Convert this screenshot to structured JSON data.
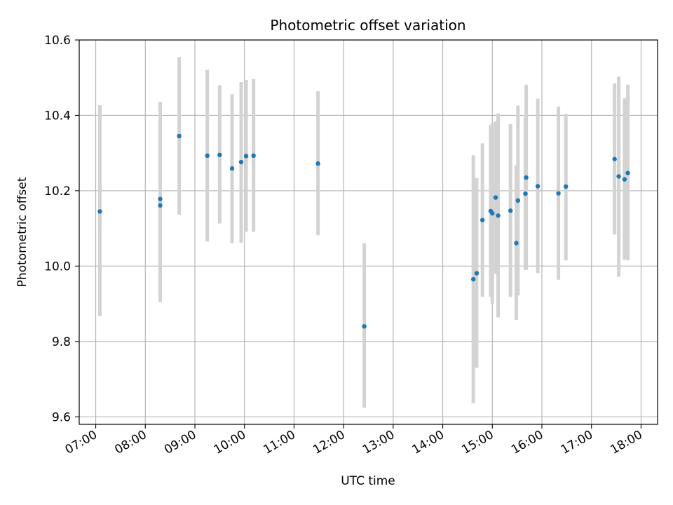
{
  "chart_data": {
    "type": "scatter",
    "title": "Photometric offset variation",
    "xlabel": "UTC time",
    "ylabel": "Photometric offset",
    "x_axis": {
      "type": "time",
      "min": "06:40",
      "max": "18:20",
      "ticks": [
        "07:00",
        "08:00",
        "09:00",
        "10:00",
        "11:00",
        "12:00",
        "13:00",
        "14:00",
        "15:00",
        "16:00",
        "17:00",
        "18:00"
      ]
    },
    "y_axis": {
      "min": 9.58,
      "max": 10.6,
      "ticks": [
        9.6,
        9.8,
        10.0,
        10.2,
        10.4,
        10.6
      ],
      "tick_labels": [
        "9.6",
        "9.8",
        "10.0",
        "10.2",
        "10.4",
        "10.6"
      ]
    },
    "grid": true,
    "colors": {
      "marker": "#1f77b4",
      "errorbar": "#d3d3d3",
      "grid": "#b0b0b0"
    },
    "points": [
      {
        "time": "07:05",
        "y": 10.145,
        "lo": 9.867,
        "hi": 10.427
      },
      {
        "time": "08:18",
        "y": 10.178,
        "lo": 9.905,
        "hi": 10.436
      },
      {
        "time": "08:18",
        "y": 10.161,
        "lo": 9.905,
        "hi": 10.436
      },
      {
        "time": "08:41",
        "y": 10.345,
        "lo": 10.136,
        "hi": 10.555
      },
      {
        "time": "09:15",
        "y": 10.293,
        "lo": 10.065,
        "hi": 10.521
      },
      {
        "time": "09:30",
        "y": 10.295,
        "lo": 10.113,
        "hi": 10.48
      },
      {
        "time": "09:45",
        "y": 10.259,
        "lo": 10.061,
        "hi": 10.456
      },
      {
        "time": "09:56",
        "y": 10.276,
        "lo": 10.062,
        "hi": 10.488
      },
      {
        "time": "10:02",
        "y": 10.292,
        "lo": 10.091,
        "hi": 10.494
      },
      {
        "time": "10:11",
        "y": 10.293,
        "lo": 10.091,
        "hi": 10.497
      },
      {
        "time": "11:29",
        "y": 10.272,
        "lo": 10.082,
        "hi": 10.464
      },
      {
        "time": "12:25",
        "y": 9.84,
        "lo": 9.624,
        "hi": 10.06
      },
      {
        "time": "14:37",
        "y": 9.965,
        "lo": 9.636,
        "hi": 10.294
      },
      {
        "time": "14:41",
        "y": 9.981,
        "lo": 9.73,
        "hi": 10.233
      },
      {
        "time": "14:48",
        "y": 10.122,
        "lo": 9.918,
        "hi": 10.326
      },
      {
        "time": "14:58",
        "y": 10.146,
        "lo": 9.918,
        "hi": 10.375
      },
      {
        "time": "15:00",
        "y": 10.14,
        "lo": 9.9,
        "hi": 10.38
      },
      {
        "time": "15:04",
        "y": 10.182,
        "lo": 9.98,
        "hi": 10.384
      },
      {
        "time": "15:07",
        "y": 10.134,
        "lo": 9.864,
        "hi": 10.405
      },
      {
        "time": "15:22",
        "y": 10.147,
        "lo": 9.918,
        "hi": 10.377
      },
      {
        "time": "15:29",
        "y": 10.061,
        "lo": 9.857,
        "hi": 10.267
      },
      {
        "time": "15:31",
        "y": 10.174,
        "lo": 9.922,
        "hi": 10.426
      },
      {
        "time": "15:40",
        "y": 10.192,
        "lo": 9.99,
        "hi": 10.394
      },
      {
        "time": "15:41",
        "y": 10.235,
        "lo": 9.99,
        "hi": 10.481
      },
      {
        "time": "15:55",
        "y": 10.212,
        "lo": 9.981,
        "hi": 10.444
      },
      {
        "time": "16:20",
        "y": 10.193,
        "lo": 9.964,
        "hi": 10.423
      },
      {
        "time": "16:29",
        "y": 10.211,
        "lo": 10.015,
        "hi": 10.404
      },
      {
        "time": "17:28",
        "y": 10.284,
        "lo": 10.084,
        "hi": 10.485
      },
      {
        "time": "17:33",
        "y": 10.238,
        "lo": 9.972,
        "hi": 10.503
      },
      {
        "time": "17:40",
        "y": 10.23,
        "lo": 10.017,
        "hi": 10.445
      },
      {
        "time": "17:44",
        "y": 10.247,
        "lo": 10.015,
        "hi": 10.481
      }
    ]
  }
}
